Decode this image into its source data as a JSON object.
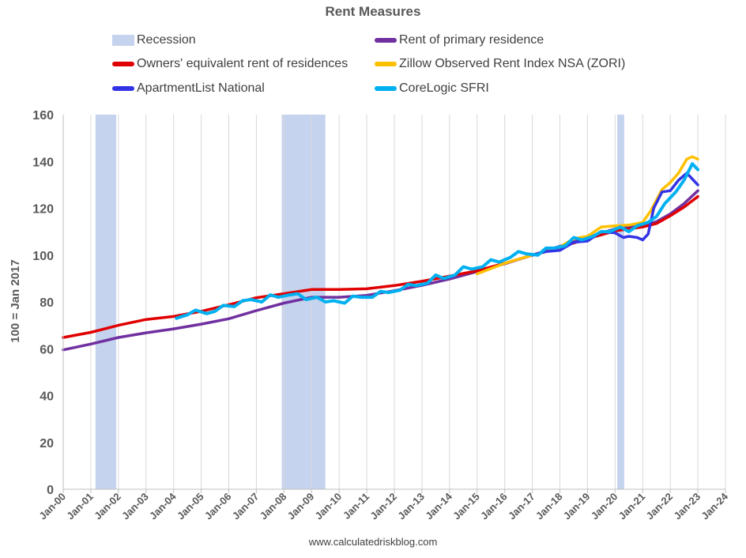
{
  "chart_data": {
    "type": "line",
    "title": "Rent Measures",
    "ylabel": "100 = Jan 2017",
    "xlabel": "",
    "ylim": [
      0,
      160
    ],
    "yticks": [
      0,
      20,
      40,
      60,
      80,
      100,
      120,
      140,
      160
    ],
    "xlim": [
      2000,
      2024
    ],
    "xtick_labels": [
      "Jan-00",
      "Jan-01",
      "Jan-02",
      "Jan-03",
      "Jan-04",
      "Jan-05",
      "Jan-06",
      "Jan-07",
      "Jan-08",
      "Jan-09",
      "Jan-10",
      "Jan-11",
      "Jan-12",
      "Jan-13",
      "Jan-14",
      "Jan-15",
      "Jan-16",
      "Jan-17",
      "Jan-18",
      "Jan-19",
      "Jan-20",
      "Jan-21",
      "Jan-22",
      "Jan-23",
      "Jan-24"
    ],
    "grid": "vertical",
    "legend_position": "top",
    "recessions": [
      {
        "start": 2001.17,
        "end": 2001.92
      },
      {
        "start": 2007.92,
        "end": 2009.5
      },
      {
        "start": 2020.08,
        "end": 2020.33
      }
    ],
    "series": [
      {
        "name": "Recession",
        "color": "#C5D3EE",
        "kind": "band"
      },
      {
        "name": "Rent of primary residence",
        "color": "#7030A0",
        "width": 3.5,
        "x": [
          2000,
          2001,
          2002,
          2003,
          2004,
          2005,
          2006,
          2007,
          2008,
          2009,
          2010,
          2011,
          2012,
          2013,
          2014,
          2015,
          2016,
          2017,
          2018,
          2019,
          2020,
          2021,
          2021.5,
          2022,
          2022.5,
          2023
        ],
        "y": [
          59.5,
          62,
          64.8,
          66.8,
          68.5,
          70.5,
          72.8,
          76.3,
          79.5,
          82,
          82,
          82.8,
          84.8,
          87.1,
          89.8,
          93,
          96.3,
          100,
          103.8,
          107.5,
          111.2,
          112.5,
          114.3,
          117.6,
          122,
          127.5
        ]
      },
      {
        "name": "Owners' equivalent rent of residences",
        "color": "#E00000",
        "width": 3.5,
        "x": [
          2000,
          2001,
          2002,
          2003,
          2004,
          2005,
          2006,
          2007,
          2008,
          2009,
          2010,
          2011,
          2012,
          2013,
          2014,
          2015,
          2016,
          2017,
          2018,
          2019,
          2020,
          2021,
          2021.5,
          2022,
          2022.5,
          2023
        ],
        "y": [
          64.8,
          67,
          70,
          72.5,
          73.8,
          76,
          78.8,
          81.8,
          83.5,
          85.3,
          85.3,
          85.6,
          87,
          88.8,
          91,
          93.3,
          96.5,
          100,
          103.3,
          107,
          110.3,
          112,
          113.5,
          116.8,
          120.5,
          125
        ]
      },
      {
        "name": "Zillow Observed Rent Index NSA (ZORI)",
        "color": "#FFC000",
        "width": 3.5,
        "x": [
          2015,
          2016,
          2017,
          2017.5,
          2018,
          2018.5,
          2019,
          2019.5,
          2020,
          2020.5,
          2021,
          2021.3,
          2021.7,
          2022,
          2022.3,
          2022.6,
          2022.8,
          2023
        ],
        "y": [
          92,
          96.5,
          100,
          101.5,
          103.5,
          107,
          108,
          112,
          112.5,
          112.8,
          114,
          119,
          128,
          131,
          135,
          141,
          142,
          141
        ]
      },
      {
        "name": "ApartmentList National",
        "color": "#3333E6",
        "width": 3.5,
        "x": [
          2017,
          2017.5,
          2018,
          2018.5,
          2019,
          2019.5,
          2020,
          2020.3,
          2020.5,
          2020.8,
          2021,
          2021.2,
          2021.4,
          2021.7,
          2022,
          2022.3,
          2022.6,
          2022.8,
          2023
        ],
        "y": [
          100,
          101.5,
          102,
          105.5,
          106,
          110,
          109.5,
          107.5,
          108,
          107.5,
          106.5,
          109,
          120,
          127,
          127.5,
          132,
          135,
          132.5,
          130
        ]
      },
      {
        "name": "CoreLogic SFRI",
        "color": "#00B0F0",
        "width": 4,
        "x": [
          2004.1,
          2004.5,
          2004.8,
          2005.2,
          2005.5,
          2005.8,
          2006.2,
          2006.5,
          2006.8,
          2007.2,
          2007.5,
          2007.8,
          2008.2,
          2008.5,
          2008.8,
          2009.2,
          2009.5,
          2009.8,
          2010.2,
          2010.5,
          2010.8,
          2011.2,
          2011.5,
          2011.8,
          2012.2,
          2012.5,
          2012.8,
          2013.2,
          2013.5,
          2013.8,
          2014.2,
          2014.5,
          2014.8,
          2015.2,
          2015.5,
          2015.8,
          2016.2,
          2016.5,
          2016.8,
          2017.2,
          2017.5,
          2017.8,
          2018.2,
          2018.5,
          2018.8,
          2019.2,
          2019.5,
          2019.8,
          2020.2,
          2020.5,
          2020.8,
          2021.2,
          2021.5,
          2021.8,
          2022.2,
          2022.5,
          2022.8,
          2023
        ],
        "y": [
          73,
          74.5,
          76.5,
          75,
          76,
          78.5,
          78,
          80.5,
          81,
          80,
          83,
          82,
          83,
          83.5,
          81,
          82,
          80,
          80.5,
          79.5,
          82.5,
          82,
          82,
          84.5,
          84,
          85,
          87.5,
          87,
          88,
          91.5,
          90,
          91.5,
          95,
          94,
          95,
          98,
          97,
          99,
          101.5,
          100.5,
          100,
          103,
          103,
          104,
          107.5,
          106.5,
          108,
          110,
          110,
          112,
          110,
          112.5,
          114,
          116.5,
          122,
          127,
          132,
          139,
          136.5
        ]
      }
    ]
  },
  "footer": "www.calculatedriskblog.com"
}
